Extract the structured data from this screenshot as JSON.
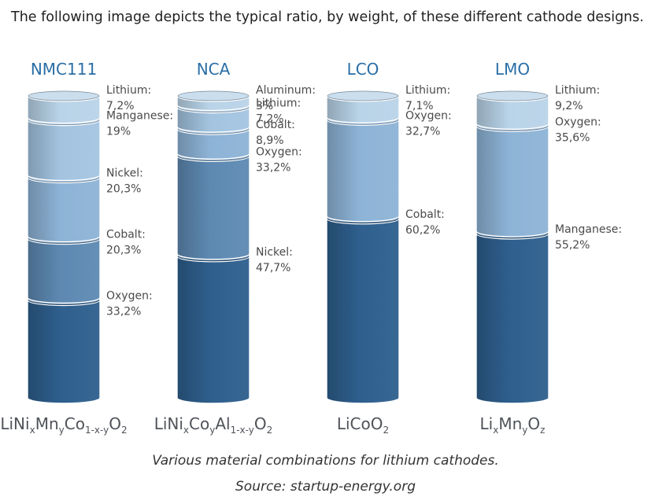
{
  "intro_text": "The following image depicts the typical ratio, by weight, of these different cathode designs.",
  "caption": {
    "line1": "Various material combinations for lithium cathodes.",
    "line2": "Source: startup-energy.org"
  },
  "colors": {
    "title": "#2a6ea6",
    "tiers": [
      "#b9d3e8",
      "#a3c4e0",
      "#8db3d6",
      "#5d89b2",
      "#2e5f8d"
    ]
  },
  "chart_data": {
    "type": "stacked-column",
    "title": "",
    "unit": "% by weight",
    "series": [
      {
        "name": "NMC111",
        "formula": [
          {
            "t": "LiNi"
          },
          {
            "t": "x",
            "sub": true
          },
          {
            "t": "Mn"
          },
          {
            "t": "y",
            "sub": true
          },
          {
            "t": "Co"
          },
          {
            "t": "1-x-y",
            "sub": true
          },
          {
            "t": "O"
          },
          {
            "t": "2",
            "sub": true
          }
        ],
        "segments": [
          {
            "name": "Lithium",
            "value_label": "7,2%",
            "value": 7.2
          },
          {
            "name": "Manganese",
            "value_label": "19%",
            "value": 19
          },
          {
            "name": "Nickel",
            "value_label": "20,3%",
            "value": 20.3
          },
          {
            "name": "Cobalt",
            "value_label": "20,3%",
            "value": 20.3
          },
          {
            "name": "Oxygen",
            "value_label": "33,2%",
            "value": 33.2
          }
        ]
      },
      {
        "name": "NCA",
        "formula": [
          {
            "t": "LiNi"
          },
          {
            "t": "x",
            "sub": true
          },
          {
            "t": "Co"
          },
          {
            "t": "y",
            "sub": true
          },
          {
            "t": "Al"
          },
          {
            "t": "1-x-y",
            "sub": true
          },
          {
            "t": "O"
          },
          {
            "t": "2",
            "sub": true
          }
        ],
        "segments": [
          {
            "name": "Aluminum",
            "value_label": "3%",
            "value": 3
          },
          {
            "name": "Lithium",
            "value_label": "7,2%",
            "value": 7.2
          },
          {
            "name": "Cobalt",
            "value_label": "8,9%",
            "value": 8.9
          },
          {
            "name": "Oxygen",
            "value_label": "33,2%",
            "value": 33.2
          },
          {
            "name": "Nickel",
            "value_label": "47,7%",
            "value": 47.7
          }
        ]
      },
      {
        "name": "LCO",
        "formula": [
          {
            "t": "LiCoO"
          },
          {
            "t": "2",
            "sub": true
          }
        ],
        "segments": [
          {
            "name": "Lithium",
            "value_label": "7,1%",
            "value": 7.1
          },
          {
            "name": "Oxygen",
            "value_label": "32,7%",
            "value": 32.7
          },
          {
            "name": "Cobalt",
            "value_label": "60,2%",
            "value": 60.2
          }
        ]
      },
      {
        "name": "LMO",
        "formula": [
          {
            "t": "Li"
          },
          {
            "t": "x",
            "sub": true
          },
          {
            "t": "Mn"
          },
          {
            "t": "y",
            "sub": true
          },
          {
            "t": "O"
          },
          {
            "t": "z",
            "sub": true
          }
        ],
        "segments": [
          {
            "name": "Lithium",
            "value_label": "9,2%",
            "value": 9.2
          },
          {
            "name": "Oxygen",
            "value_label": "35,6%",
            "value": 35.6
          },
          {
            "name": "Manganese",
            "value_label": "55,2%",
            "value": 55.2
          }
        ]
      }
    ]
  }
}
